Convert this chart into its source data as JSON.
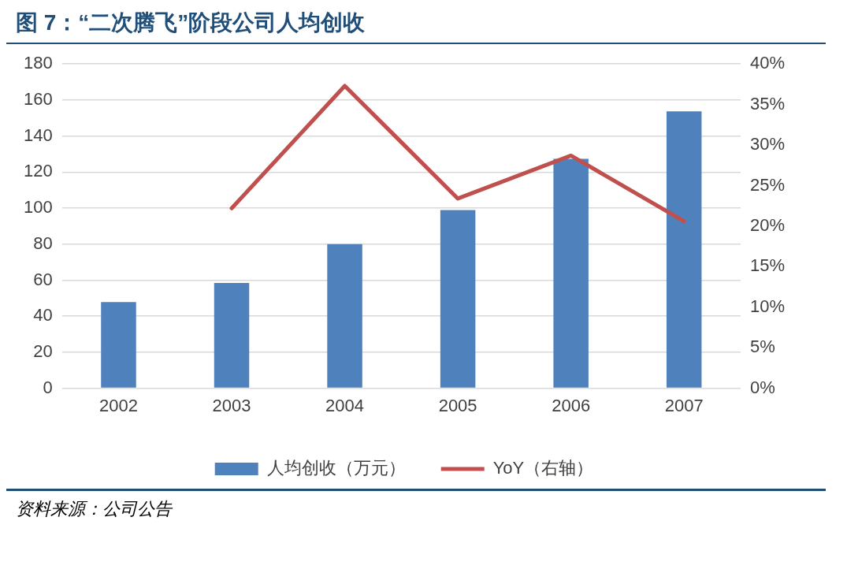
{
  "chart_data": {
    "type": "bar",
    "title": "图 7：“二次腾飞”阶段公司人均创收",
    "categories": [
      "2002",
      "2003",
      "2004",
      "2005",
      "2006",
      "2007"
    ],
    "series": [
      {
        "name": "人均创收（万元）",
        "color": "#4f81bd",
        "values": [
          47.8,
          58.4,
          80.0,
          98.9,
          127.4,
          153.7
        ]
      },
      {
        "name": "YoY（右轴）",
        "type": "line",
        "axis": "y2",
        "color": "#c0504d",
        "values": [
          null,
          22.2,
          37.3,
          23.4,
          28.7,
          20.6
        ]
      }
    ],
    "ylim": [
      0,
      180
    ],
    "yticks": [
      0,
      20,
      40,
      60,
      80,
      100,
      120,
      140,
      160,
      180
    ],
    "y2lim": [
      0,
      40
    ],
    "y2ticks": [
      {
        "value": 0,
        "label": "0%"
      },
      {
        "value": 5,
        "label": "5%"
      },
      {
        "value": 10,
        "label": "10%"
      },
      {
        "value": 15,
        "label": "15%"
      },
      {
        "value": 20,
        "label": "20%"
      },
      {
        "value": 25,
        "label": "25%"
      },
      {
        "value": 30,
        "label": "30%"
      },
      {
        "value": 35,
        "label": "35%"
      },
      {
        "value": 40,
        "label": "40%"
      }
    ],
    "grid": "y",
    "legend": "bottom",
    "marker": "none",
    "line_style": "solid",
    "annotations": [
      "资料来源：公司公告"
    ]
  }
}
